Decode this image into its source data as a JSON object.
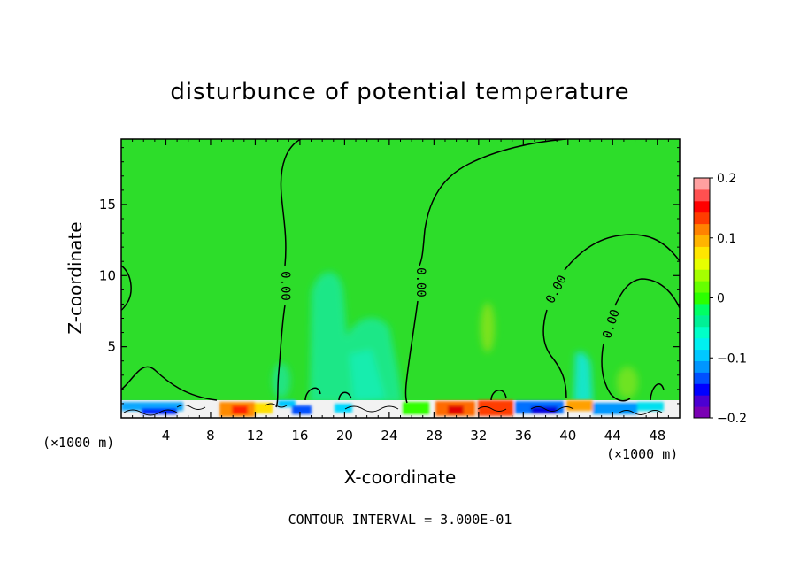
{
  "chart_data": {
    "type": "heatmap",
    "title": "disturbunce of potential temperature",
    "xlabel": "X-coordinate",
    "ylabel": "Z-coordinate",
    "x_unit": "(×1000 m)",
    "y_unit": "(×1000 m)",
    "xlim": [
      0,
      50
    ],
    "ylim": [
      0,
      19.6
    ],
    "xticks": [
      4,
      8,
      12,
      16,
      20,
      24,
      28,
      32,
      36,
      40,
      44,
      48
    ],
    "yticks": [
      5,
      10,
      15
    ],
    "colorbar": {
      "range": [
        -0.2,
        0.2
      ],
      "tick_values": [
        0.2,
        0.1,
        0,
        -0.1,
        -0.2
      ],
      "tick_labels": [
        "0.2",
        "0.1",
        "0",
        "−0.1",
        "−0.2"
      ],
      "colors": [
        "#7a00b4",
        "#4b00d2",
        "#0000ff",
        "#0050ff",
        "#0096ff",
        "#00c8ff",
        "#00f0f0",
        "#00ffc8",
        "#00f096",
        "#00ff64",
        "#2cff00",
        "#66ff00",
        "#a5ff00",
        "#e6ff00",
        "#ffe600",
        "#ffb400",
        "#ff8200",
        "#ff3c00",
        "#ff0000",
        "#ff5050",
        "#ffa0a0"
      ]
    },
    "background_value": 0,
    "contour_labels": [
      {
        "text": "0.00",
        "x": 12.2,
        "z": 9.5,
        "angle": 90
      },
      {
        "text": "0.00",
        "x": 26.3,
        "z": 10.2,
        "angle": 90
      },
      {
        "text": "0.00",
        "x": 39.5,
        "z": 9.0,
        "angle": -62
      },
      {
        "text": "0.00",
        "x": 43.7,
        "z": 6.9,
        "angle": -72
      }
    ],
    "annotation": "CONTOUR INTERVAL = 3.000E-01"
  }
}
